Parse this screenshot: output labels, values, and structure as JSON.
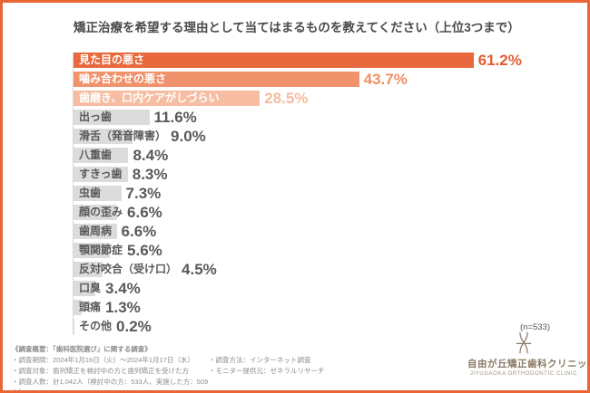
{
  "frame": {
    "border_color": "#EB6434"
  },
  "title": "矯正治療を希望する理由として当てはまるものを教えてください（上位3つまで）",
  "chart_data": {
    "type": "bar",
    "orientation": "horizontal",
    "title": "矯正治療を希望する理由として当てはまるものを教えてください（上位3つまで）",
    "xlabel": "",
    "ylabel": "",
    "xlim": [
      0,
      70
    ],
    "grid": false,
    "sample_note": "(n=533)",
    "categories": [
      "見た目の悪さ",
      "噛み合わせの悪さ",
      "歯磨き、口内ケアがしづらい",
      "出っ歯",
      "滑舌（発音障害）",
      "八重歯",
      "すきっ歯",
      "虫歯",
      "顔の歪み",
      "歯周病",
      "顎関節症",
      "反対咬合（受け口）",
      "口臭",
      "頭痛",
      "その他"
    ],
    "values": [
      61.2,
      43.7,
      28.5,
      11.6,
      9.0,
      8.4,
      8.3,
      7.3,
      6.6,
      6.6,
      5.6,
      4.5,
      3.4,
      1.3,
      0.2
    ],
    "bars": [
      {
        "label": "見た目の悪さ",
        "value": 61.2,
        "display": "61.2%",
        "bar_color": "#E8693E",
        "label_color": "#FFFFFF",
        "pct_color": "#E25C33"
      },
      {
        "label": "噛み合わせの悪さ",
        "value": 43.7,
        "display": "43.7%",
        "bar_color": "#F0926B",
        "label_color": "#FFFFFF",
        "pct_color": "#EF9067"
      },
      {
        "label": "歯磨き、口内ケアがしづらい",
        "value": 28.5,
        "display": "28.5%",
        "bar_color": "#F7BDA2",
        "label_color": "#FFFFFF",
        "pct_color": "#F6BB9F"
      },
      {
        "label": "出っ歯",
        "value": 11.6,
        "display": "11.6%",
        "bar_color": "#DCDCDC",
        "label_color": "#595959",
        "pct_color": "#595959"
      },
      {
        "label": "滑舌（発音障害）",
        "value": 9.0,
        "display": "9.0%",
        "bar_color": "#DCDCDC",
        "label_color": "#595959",
        "pct_color": "#595959"
      },
      {
        "label": "八重歯",
        "value": 8.4,
        "display": "8.4%",
        "bar_color": "#DCDCDC",
        "label_color": "#595959",
        "pct_color": "#595959"
      },
      {
        "label": "すきっ歯",
        "value": 8.3,
        "display": "8.3%",
        "bar_color": "#DCDCDC",
        "label_color": "#595959",
        "pct_color": "#595959"
      },
      {
        "label": "虫歯",
        "value": 7.3,
        "display": "7.3%",
        "bar_color": "#DCDCDC",
        "label_color": "#595959",
        "pct_color": "#595959"
      },
      {
        "label": "顔の歪み",
        "value": 6.6,
        "display": "6.6%",
        "bar_color": "#DCDCDC",
        "label_color": "#595959",
        "pct_color": "#595959"
      },
      {
        "label": "歯周病",
        "value": 6.6,
        "display": "6.6%",
        "bar_color": "#DCDCDC",
        "label_color": "#595959",
        "pct_color": "#595959"
      },
      {
        "label": "顎関節症",
        "value": 5.6,
        "display": "5.6%",
        "bar_color": "#DCDCDC",
        "label_color": "#595959",
        "pct_color": "#595959"
      },
      {
        "label": "反対咬合（受け口）",
        "value": 4.5,
        "display": "4.5%",
        "bar_color": "#DCDCDC",
        "label_color": "#595959",
        "pct_color": "#595959"
      },
      {
        "label": "口臭",
        "value": 3.4,
        "display": "3.4%",
        "bar_color": "#DCDCDC",
        "label_color": "#595959",
        "pct_color": "#595959"
      },
      {
        "label": "頭痛",
        "value": 1.3,
        "display": "1.3%",
        "bar_color": "#DCDCDC",
        "label_color": "#595959",
        "pct_color": "#595959"
      },
      {
        "label": "その他",
        "value": 0.2,
        "display": "0.2%",
        "bar_color": "#DCDCDC",
        "label_color": "#595959",
        "pct_color": "#595959"
      }
    ]
  },
  "footer": {
    "heading": "《調査概要：「歯科医院選び」に関する調査》",
    "left_items": [
      "・調査期間：2024年1月16日（火）〜2024年1月17日（水）",
      "・調査対象：歯列矯正を検討中の方と歯列矯正を受けた方",
      "・調査人数：計1,042人（検討中の方：533人、実施した方：509人）"
    ],
    "right_items": [
      "・調査方法：インターネット調査",
      "・モニター提供元：ゼネラルリサーチ"
    ]
  },
  "logo": {
    "name": "自由が丘矯正歯科クリニック",
    "subtitle": "JIYUGAOKA ORTHODONTIC CLINIC",
    "color": "#8B7A66"
  }
}
